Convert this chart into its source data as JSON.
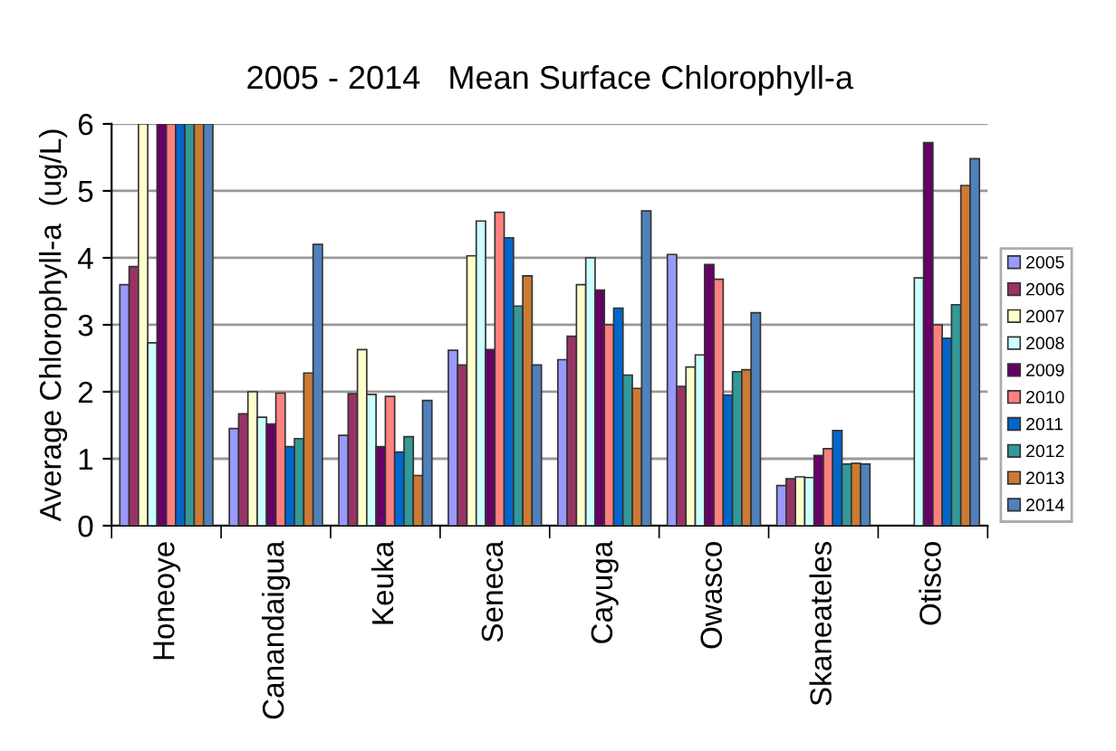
{
  "chart_data": {
    "type": "bar",
    "title": "2005 - 2014   Mean Surface Chlorophyll-a",
    "ylabel": "Average Chlorophyll-a  (ug/L)",
    "categories": [
      "Honeoye",
      "Canandaigua",
      "Keuka",
      "Seneca",
      "Cayuga",
      "Owasco",
      "Skaneateles",
      "Otisco"
    ],
    "series": [
      {
        "name": "2005",
        "color": "#9999ff",
        "values": [
          3.6,
          1.45,
          1.35,
          2.62,
          2.48,
          4.05,
          0.6,
          null
        ]
      },
      {
        "name": "2006",
        "color": "#993366",
        "values": [
          3.87,
          1.67,
          1.97,
          2.4,
          2.83,
          2.08,
          0.7,
          null
        ]
      },
      {
        "name": "2007",
        "color": "#ffffcc",
        "values": [
          6,
          2.0,
          2.63,
          4.03,
          3.6,
          2.37,
          0.73,
          null
        ]
      },
      {
        "name": "2008",
        "color": "#ccffff",
        "values": [
          2.73,
          1.62,
          1.96,
          4.55,
          4.0,
          2.55,
          0.72,
          3.7
        ]
      },
      {
        "name": "2009",
        "color": "#660066",
        "values": [
          6,
          1.52,
          1.18,
          2.63,
          3.52,
          3.9,
          1.05,
          5.72
        ]
      },
      {
        "name": "2010",
        "color": "#ff8080",
        "values": [
          6,
          1.98,
          1.93,
          4.68,
          3.0,
          3.68,
          1.15,
          3.0
        ]
      },
      {
        "name": "2011",
        "color": "#0066cc",
        "values": [
          6,
          1.18,
          1.1,
          4.3,
          3.25,
          1.95,
          1.42,
          2.8
        ]
      },
      {
        "name": "2012",
        "color": "#339999",
        "values": [
          6,
          1.3,
          1.33,
          3.28,
          2.25,
          2.3,
          0.92,
          3.3
        ]
      },
      {
        "name": "2013",
        "color": "#cc7a33",
        "values": [
          6,
          2.28,
          0.75,
          3.73,
          2.05,
          2.33,
          0.93,
          5.08
        ]
      },
      {
        "name": "2014",
        "color": "#4f81bd",
        "values": [
          6,
          4.2,
          1.87,
          2.4,
          4.7,
          3.18,
          0.92,
          5.48
        ]
      }
    ],
    "ylim": [
      0,
      6
    ],
    "yticks": [
      0,
      1,
      2,
      3,
      4,
      5,
      6
    ],
    "grid": "y",
    "legend": "right"
  }
}
